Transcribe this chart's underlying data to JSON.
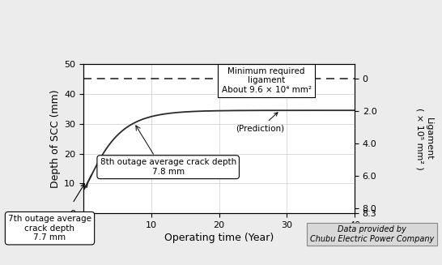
{
  "xlabel": "Operating time (Year)",
  "ylabel": "Depth of SCC (mm)",
  "ylabel_right": "Ligament\n( × 10⁵ mm² )",
  "xlim": [
    0,
    40
  ],
  "ylim": [
    0,
    50
  ],
  "yticks_left": [
    0,
    10,
    20,
    30,
    40,
    50
  ],
  "yticks_right_vals": [
    0,
    2.0,
    4.0,
    6.0,
    8.0,
    8.3
  ],
  "yticks_right_labels": [
    "0",
    "2.0",
    "4.0",
    "6.0",
    "8.0",
    "8.3"
  ],
  "xticks": [
    0,
    10,
    20,
    30,
    40
  ],
  "dashed_line_y": 45.0,
  "annotation_box_text": "Minimum required\nligament\nAbout 9.6 × 10⁴ mm²",
  "prediction_label_text": "(Prediction)",
  "outage8_label": "8th outage average crack depth\n7.8 mm",
  "outage7_label": "7th outage average\ncrack depth\n7.7 mm",
  "data_credit": "Data provided by\nChubu Electric Power Company",
  "bg_color": "#ececec",
  "plot_bg": "#ffffff",
  "grid_color": "#cccccc",
  "curve_color": "#2a2a2a",
  "dashed_color": "#2a2a2a"
}
